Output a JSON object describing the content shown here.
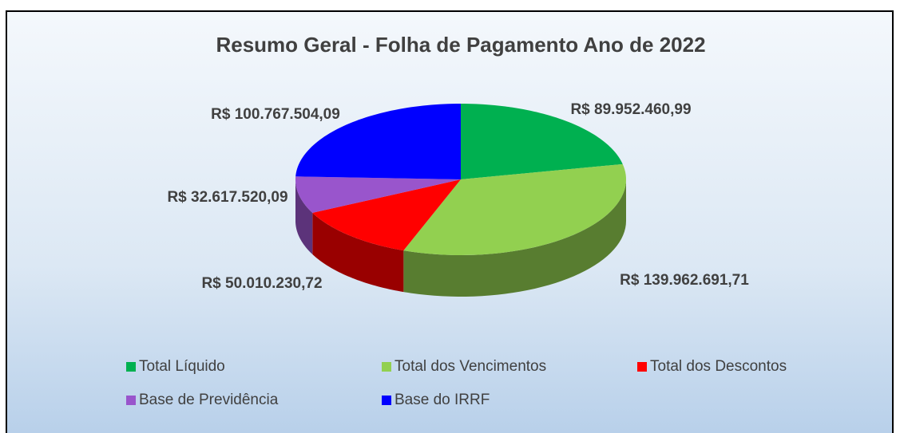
{
  "chart_data": {
    "type": "pie3d",
    "title": "Resumo Geral - Folha de Pagamento Ano de 2022",
    "categories": [
      "Total Líquido",
      "Total dos Vencimentos",
      "Total dos Descontos",
      "Base de Previdência",
      "Base do IRRF"
    ],
    "values": [
      89952460.99,
      139962691.71,
      50010230.72,
      32617520.09,
      100767504.09
    ],
    "value_labels": [
      "R$ 89.952.460,99",
      "R$ 139.962.691,71",
      "R$ 50.010.230,72",
      "R$ 32.617.520,09",
      "R$ 100.767.504,09"
    ],
    "colors": [
      "#00b050",
      "#92d050",
      "#ff0000",
      "#9955cc",
      "#0000ff"
    ],
    "legend": "bottom"
  }
}
